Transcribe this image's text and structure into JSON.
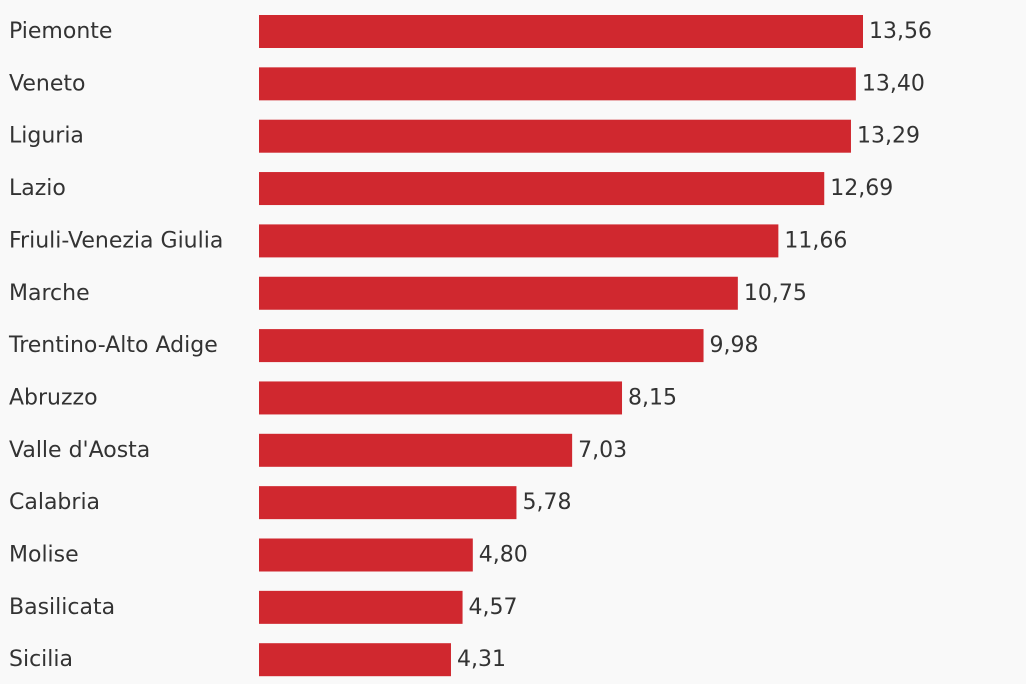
{
  "chart_data": {
    "type": "bar",
    "orientation": "horizontal",
    "categories": [
      "Piemonte",
      "Veneto",
      "Liguria",
      "Lazio",
      "Friuli-Venezia Giulia",
      "Marche",
      "Trentino-Alto Adige",
      "Abruzzo",
      "Valle d'Aosta",
      "Calabria",
      "Molise",
      "Basilicata",
      "Sicilia"
    ],
    "values": [
      13.56,
      13.4,
      13.29,
      12.69,
      11.66,
      10.75,
      9.98,
      8.15,
      7.03,
      5.78,
      4.8,
      4.57,
      4.31
    ],
    "value_labels": [
      "13,56",
      "13,40",
      "13,29",
      "12,69",
      "11,66",
      "10,75",
      "9,98",
      "8,15",
      "7,03",
      "5,78",
      "4,80",
      "4,57",
      "4,31"
    ],
    "title": "",
    "xlabel": "",
    "ylabel": "",
    "xlim": [
      0,
      13.56
    ],
    "grid": false,
    "legend": "none",
    "bar_color": "#d0282f",
    "text_color": "#333333",
    "background_color": "#f9f9f9"
  }
}
